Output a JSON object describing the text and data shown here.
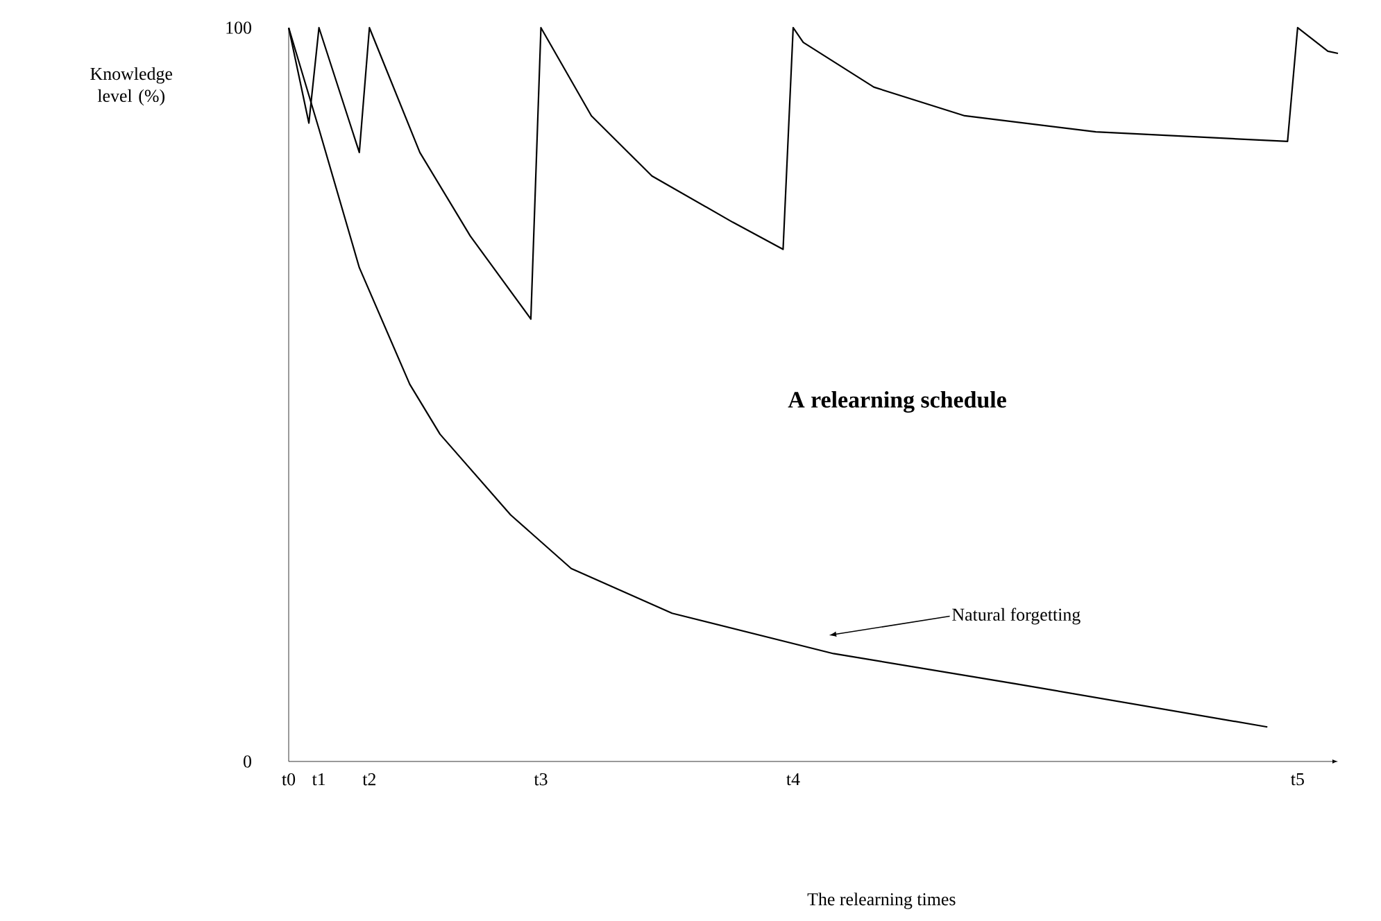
{
  "chart_data": {
    "type": "line",
    "title": "A relearning schedule",
    "ylabel": "Knowledge level (%)",
    "categories": [
      "t0",
      null,
      null,
      "t1",
      null,
      null,
      null,
      null,
      "t2",
      null,
      null,
      null,
      null,
      null,
      null,
      null,
      null,
      null,
      null,
      null,
      null,
      null,
      null,
      null,
      null,
      "t3",
      null,
      null,
      null,
      null,
      null,
      null,
      null,
      null,
      null,
      null,
      null,
      null,
      null,
      null,
      null,
      null,
      null,
      null,
      null,
      null,
      null,
      null,
      null,
      null,
      "t4",
      null,
      null,
      null,
      null,
      null,
      null,
      null,
      null,
      null,
      null,
      null,
      null,
      null,
      null,
      null,
      null,
      null,
      null,
      null,
      null,
      null,
      null,
      null,
      null,
      null,
      null,
      null,
      null,
      null,
      null,
      null,
      null,
      null,
      null,
      null,
      null,
      null,
      null,
      null,
      null,
      null,
      null,
      null,
      null,
      null,
      null,
      null,
      null,
      null,
      "t5",
      null,
      null,
      null,
      null
    ],
    "ylim": [
      0,
      100
    ],
    "yticks": [
      0,
      100
    ],
    "line_style": "solid",
    "series": [
      {
        "color": "#000000",
        "values": [
          100,
          null,
          87,
          100,
          null,
          null,
          null,
          83,
          100,
          null,
          null,
          null,
          null,
          83,
          null,
          null,
          null,
          null,
          71.6,
          null,
          null,
          null,
          null,
          null,
          60.3,
          100,
          null,
          null,
          null,
          null,
          88,
          null,
          null,
          null,
          null,
          null,
          79.8,
          null,
          null,
          null,
          null,
          null,
          null,
          null,
          73.5,
          null,
          null,
          null,
          null,
          69.8,
          100,
          98,
          null,
          null,
          null,
          null,
          null,
          null,
          91.9,
          null,
          null,
          null,
          null,
          null,
          null,
          null,
          null,
          88,
          null,
          null,
          null,
          null,
          null,
          null,
          null,
          null,
          null,
          null,
          null,
          null,
          85.8,
          null,
          null,
          null,
          null,
          null,
          null,
          null,
          null,
          null,
          null,
          null,
          null,
          null,
          null,
          null,
          null,
          null,
          null,
          84.5,
          100,
          null,
          null,
          96.8,
          96.5
        ]
      },
      {
        "color": "#000000",
        "values": [
          100,
          null,
          null,
          86.2,
          null,
          null,
          null,
          67.3,
          null,
          null,
          null,
          null,
          51.4,
          null,
          null,
          44.6,
          null,
          null,
          null,
          null,
          null,
          null,
          33.6,
          null,
          null,
          null,
          null,
          null,
          26.3,
          null,
          null,
          null,
          null,
          null,
          null,
          null,
          null,
          null,
          20.2,
          null,
          null,
          null,
          null,
          null,
          null,
          null,
          null,
          null,
          null,
          null,
          null,
          null,
          null,
          null,
          14.7,
          null,
          null,
          null,
          null,
          null,
          null,
          null,
          null,
          null,
          null,
          null,
          null,
          null,
          null,
          null,
          null,
          null,
          10.6,
          null,
          null,
          null,
          null,
          null,
          null,
          null,
          null,
          null,
          null,
          null,
          null,
          null,
          null,
          null,
          null,
          null,
          null,
          null,
          null,
          null,
          null,
          null,
          null,
          4.7,
          null,
          null,
          null,
          null,
          null,
          null,
          null
        ]
      }
    ],
    "annotations": [
      "Natural forgetting",
      "The relearning times"
    ]
  }
}
